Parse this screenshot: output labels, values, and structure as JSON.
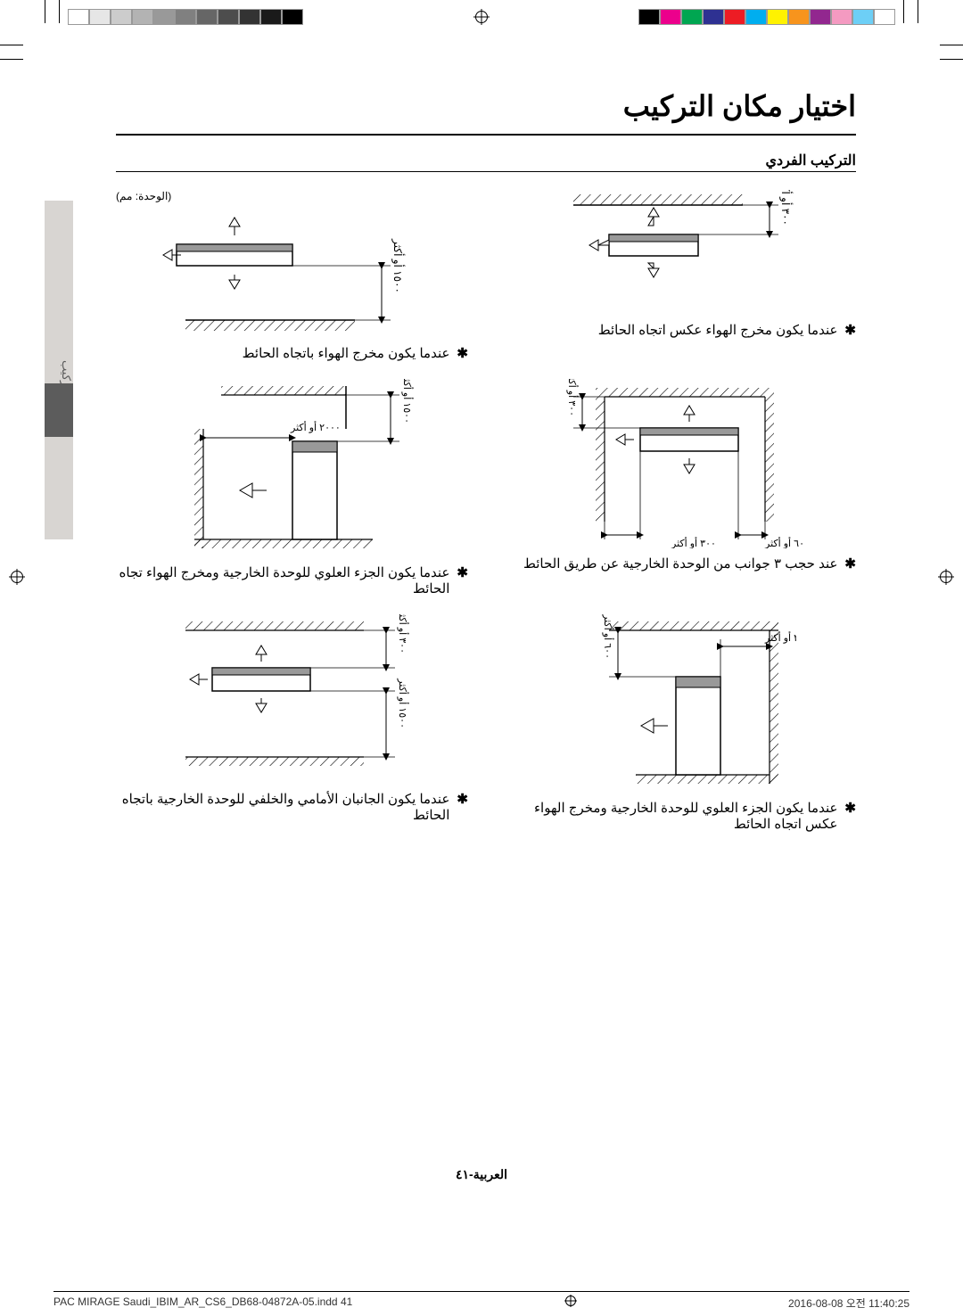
{
  "print": {
    "grayscale_swatches": [
      "#000000",
      "#1a1a1a",
      "#333333",
      "#4d4d4d",
      "#666666",
      "#808080",
      "#999999",
      "#b3b3b3",
      "#cccccc",
      "#e6e6e6",
      "#ffffff"
    ],
    "color_swatches": [
      "#000000",
      "#ec008c",
      "#00a651",
      "#2e3192",
      "#ed1c24",
      "#00aeef",
      "#fff200",
      "#f7941d",
      "#92278f",
      "#f49ac1",
      "#6dcff6",
      "#ffffff"
    ]
  },
  "side_tab": {
    "text": "التركيب",
    "page_side": "06"
  },
  "title": "اختيار مكان التركيب",
  "subtitle": "التركيب الفردي",
  "unit_note": "(الوحدة: مم)",
  "diagrams": {
    "d1": {
      "dim1": "٣٠٠ أو أكثر",
      "caption": "عندما يكون مخرج الهواء عكس اتجاه الحائط"
    },
    "d2": {
      "dim1": "١٥٠٠ أو أكثر",
      "caption": "عندما يكون مخرج الهواء باتجاه الحائط"
    },
    "d3": {
      "dim_left": "٦٠٠ أو أكثر",
      "dim_right": "٣٠٠ أو أكثر",
      "dim_top": "٣٠٠ أو أكثر",
      "caption": "عند حجب ٣ جوانب من الوحدة الخارجية عن طريق الحائط"
    },
    "d4": {
      "dim_top": "١٥٠٠ أو أكثر",
      "dim_side": "٢٠٠٠ أو أكثر",
      "caption": "عندما يكون الجزء العلوي للوحدة الخارجية ومخرج الهواء تجاه الحائط"
    },
    "d5": {
      "dim_top": "٣٠٠ أو أكثر",
      "dim_side": "٦٠٠ أو أكثر",
      "caption": "عندما يكون الجزء العلوي للوحدة الخارجية ومخرج الهواء عكس اتجاه الحائط"
    },
    "d6": {
      "dim_top": "٣٠٠ أو أكثر",
      "dim_bottom": "١٥٠٠ أو أكثر",
      "caption": "عندما يكون الجانبان الأمامي والخلفي للوحدة الخارجية باتجاه الحائط"
    }
  },
  "page_number": "العربية-٤١",
  "footer": {
    "left": "PAC MIRAGE Saudi_IBIM_AR_CS6_DB68-04872A-05.indd   41",
    "right": "2016-08-08   오전 11:40:25"
  }
}
